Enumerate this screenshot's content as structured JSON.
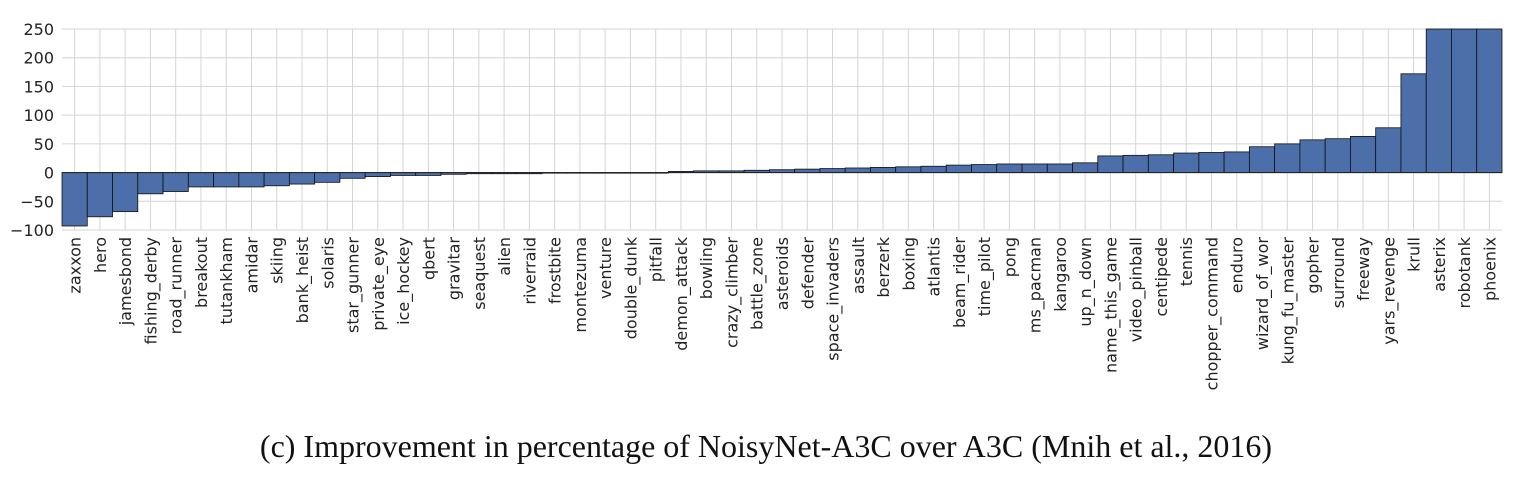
{
  "caption": "(c) Improvement in percentage of NoisyNet-A3C over A3C (Mnih et al., 2016)",
  "chart_data": {
    "type": "bar",
    "title": "",
    "xlabel": "",
    "ylabel": "",
    "ylim": [
      -100,
      250
    ],
    "yticks": [
      -100,
      -50,
      0,
      50,
      100,
      150,
      200,
      250
    ],
    "grid": true,
    "bar_color": "#4c6ea9",
    "categories": [
      "zaxxon",
      "hero",
      "jamesbond",
      "fishing_derby",
      "road_runner",
      "breakout",
      "tutankham",
      "amidar",
      "skiing",
      "bank_heist",
      "solaris",
      "star_gunner",
      "private_eye",
      "ice_hockey",
      "qbert",
      "gravitar",
      "seaquest",
      "alien",
      "riverraid",
      "frostbite",
      "montezuma",
      "venture",
      "double_dunk",
      "pitfall",
      "demon_attack",
      "bowling",
      "crazy_climber",
      "battle_zone",
      "asteroids",
      "defender",
      "space_invaders",
      "assault",
      "berzerk",
      "boxing",
      "atlantis",
      "beam_rider",
      "time_pilot",
      "pong",
      "ms_pacman",
      "kangaroo",
      "up_n_down",
      "name_this_game",
      "video_pinball",
      "centipede",
      "tennis",
      "chopper_command",
      "enduro",
      "wizard_of_wor",
      "kung_fu_master",
      "gopher",
      "surround",
      "freeway",
      "yars_revenge",
      "krull",
      "asterix",
      "robotank",
      "phoenix"
    ],
    "values": [
      -93,
      -77,
      -68,
      -37,
      -33,
      -25,
      -25,
      -25,
      -23,
      -20,
      -17,
      -10,
      -7,
      -5,
      -5,
      -3,
      -2,
      -2,
      -2,
      -1,
      0,
      0,
      0,
      0,
      2,
      3,
      3,
      4,
      5,
      6,
      7,
      8,
      9,
      10,
      11,
      13,
      14,
      15,
      15,
      15,
      17,
      29,
      30,
      31,
      34,
      35,
      36,
      45,
      50,
      57,
      59,
      63,
      78,
      172,
      250,
      250,
      250
    ]
  }
}
